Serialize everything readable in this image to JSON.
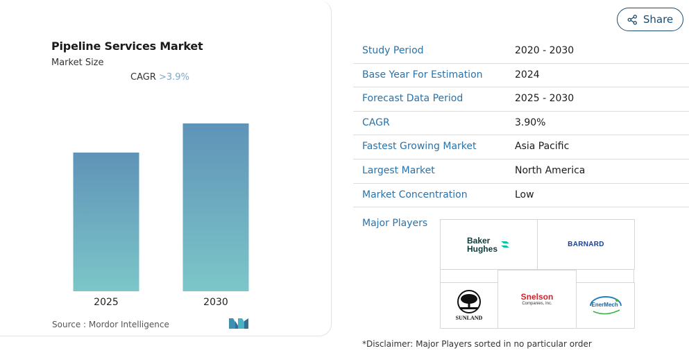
{
  "card": {
    "title": "Pipeline Services Market",
    "subtitle": "Market Size",
    "cagr_label": "CAGR",
    "cagr_value": ">3.9%",
    "source": "Source :  Mordor Intelligence"
  },
  "chart_data": {
    "type": "bar",
    "categories": [
      "2025",
      "2030"
    ],
    "values": [
      1.0,
      1.21
    ],
    "title": "",
    "xlabel": "",
    "ylabel": "",
    "ylim": [
      0,
      1.35
    ],
    "grid": false,
    "colors": {
      "top": "#5f93b8",
      "bottom": "#7cc6c8"
    }
  },
  "share": {
    "label": "Share"
  },
  "table": {
    "rows": [
      {
        "key": "Study Period",
        "value": "2020 - 2030"
      },
      {
        "key": "Base Year For Estimation",
        "value": "2024"
      },
      {
        "key": "Forecast Data Period",
        "value": "2025 - 2030"
      },
      {
        "key": "CAGR",
        "value": "3.90%"
      },
      {
        "key": "Fastest Growing Market",
        "value": "Asia Pacific"
      },
      {
        "key": "Largest Market",
        "value": "North America"
      },
      {
        "key": "Market Concentration",
        "value": "Low"
      }
    ],
    "major_players_label": "Major Players"
  },
  "players": {
    "baker_line1": "Baker",
    "baker_line2": "Hughes",
    "barnard": "BARNARD",
    "sunland": "SUNLAND",
    "snelson": "Snelson",
    "snelson_sub": "Companies, Inc.",
    "enermech": "EnerMech"
  },
  "disclaimer": "*Disclaimer: Major Players sorted in no particular order",
  "colors": {
    "accent": "#2a72a8",
    "share_border": "#1b4a6f",
    "cagr_value": "#7fa7c4"
  }
}
